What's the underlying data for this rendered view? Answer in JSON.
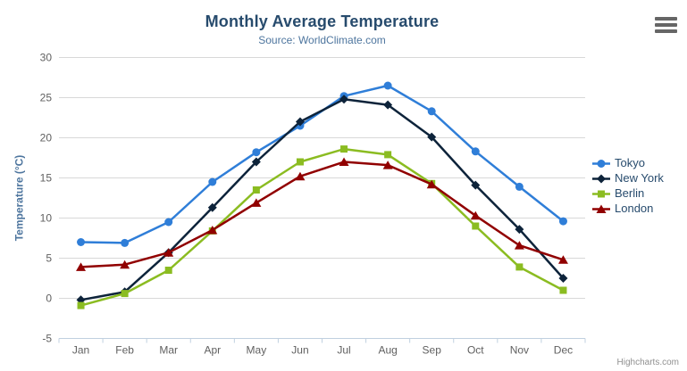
{
  "chart_data": {
    "type": "line",
    "title": "Monthly Average Temperature",
    "subtitle": "Source: WorldClimate.com",
    "categories": [
      "Jan",
      "Feb",
      "Mar",
      "Apr",
      "May",
      "Jun",
      "Jul",
      "Aug",
      "Sep",
      "Oct",
      "Nov",
      "Dec"
    ],
    "series": [
      {
        "name": "Tokyo",
        "color": "#2f7ed8",
        "marker": "circle",
        "values": [
          7.0,
          6.9,
          9.5,
          14.5,
          18.2,
          21.5,
          25.2,
          26.5,
          23.3,
          18.3,
          13.9,
          9.6
        ]
      },
      {
        "name": "New York",
        "color": "#0d233a",
        "marker": "diamond",
        "values": [
          -0.2,
          0.8,
          5.7,
          11.3,
          17.0,
          22.0,
          24.8,
          24.1,
          20.1,
          14.1,
          8.6,
          2.5
        ]
      },
      {
        "name": "Berlin",
        "color": "#8bbc21",
        "marker": "square",
        "values": [
          -0.9,
          0.6,
          3.5,
          8.4,
          13.5,
          17.0,
          18.6,
          17.9,
          14.3,
          9.0,
          3.9,
          1.0
        ]
      },
      {
        "name": "London",
        "color": "#910000",
        "marker": "triangle",
        "values": [
          3.9,
          4.2,
          5.7,
          8.5,
          11.9,
          15.2,
          17.0,
          16.6,
          14.2,
          10.3,
          6.6,
          4.8
        ]
      }
    ],
    "xlabel": "",
    "ylabel": "Temperature (°C)",
    "ylim": [
      -5,
      30
    ],
    "ytick_interval": 5,
    "grid": true,
    "legend_position": "right"
  },
  "credit": "Highcharts.com",
  "icons": {
    "export_menu": "hamburger-menu-icon"
  },
  "colors": {
    "title": "#274b6d",
    "subtitle": "#4d759e",
    "axis_label": "#606060",
    "axis_line": "#c0d0e0",
    "gridline": "#d8d8d8",
    "legend_text": "#274b6d",
    "credit": "#909090"
  }
}
